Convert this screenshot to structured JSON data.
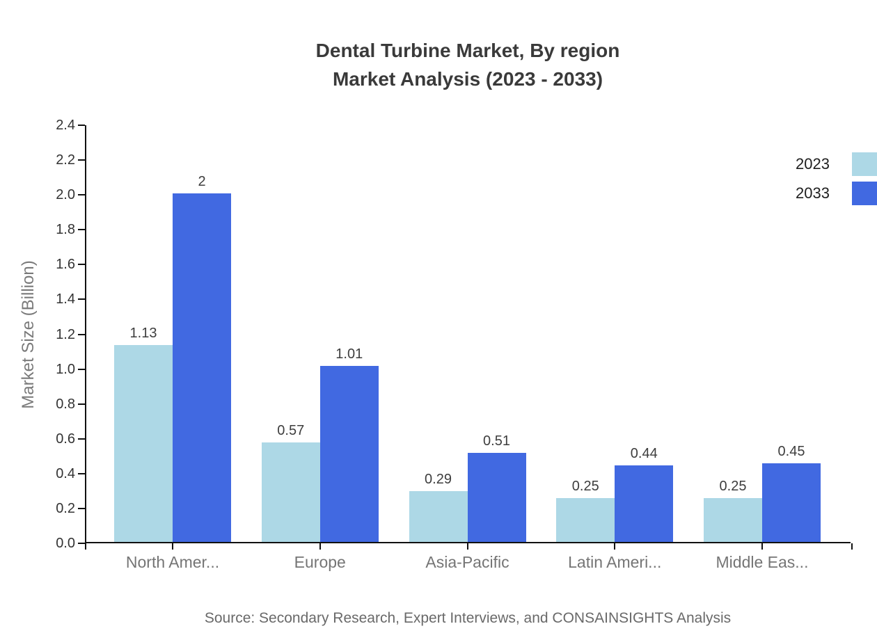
{
  "title": {
    "line1": "Dental Turbine Market, By region",
    "line2": "Market Analysis (2023 - 2033)"
  },
  "source": "Source: Secondary Research, Expert Interviews, and CONSAINSIGHTS Analysis",
  "chart_data": {
    "type": "bar",
    "title": "Dental Turbine Market, By region — Market Analysis (2023 - 2033)",
    "categories": [
      "North Amer...",
      "Europe",
      "Asia-Pacific",
      "Latin Ameri...",
      "Middle Eas..."
    ],
    "series": [
      {
        "name": "2023",
        "color": "#ADD8E6",
        "values": [
          1.13,
          0.57,
          0.29,
          0.25,
          0.25
        ]
      },
      {
        "name": "2033",
        "color": "#4169E1",
        "values": [
          2,
          1.01,
          0.51,
          0.44,
          0.45
        ]
      }
    ],
    "xlabel": "",
    "ylabel": "Market Size (Billion)",
    "ylim": [
      0,
      2.4
    ],
    "ytick_step": 0.2,
    "ytick_labels": [
      "0.0",
      "0.2",
      "0.4",
      "0.6",
      "0.8",
      "1.0",
      "1.2",
      "1.4",
      "1.6",
      "1.8",
      "2.0",
      "2.2",
      "2.4"
    ],
    "grid": false,
    "legend_position": "top-right-edge",
    "axis_color": "#111111",
    "background_color": "#ffffff"
  }
}
